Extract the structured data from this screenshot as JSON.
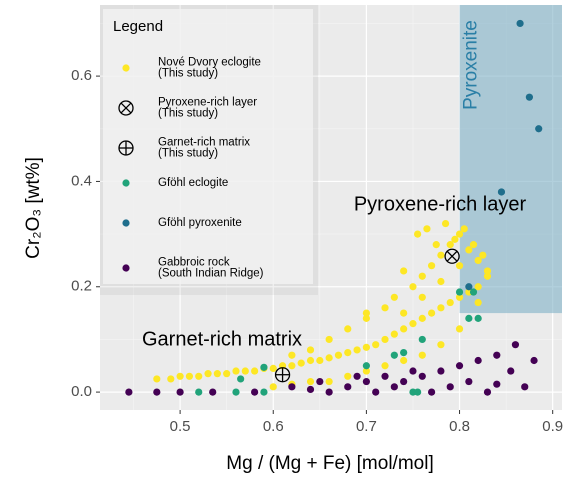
{
  "chart_data": {
    "type": "scatter",
    "xlabel": "Mg / (Mg + Fe) [mol/mol]",
    "ylabel": "Cr₂O₃ [wt%]",
    "xlim": [
      0.414,
      0.91
    ],
    "ylim": [
      -0.034,
      0.735
    ],
    "xticks": [
      0.5,
      0.6,
      0.7,
      0.8,
      0.9
    ],
    "yticks": [
      {
        "value": 0.0,
        "label": "0.0"
      },
      0.2,
      0.4,
      0.6
    ],
    "grid": true,
    "legend_title": "Legend",
    "legend_position": "upper-left",
    "regions": [
      {
        "label": "Pyroxenite",
        "color": "#7fb1c7",
        "xlim": [
          0.8,
          0.91
        ],
        "ylim": [
          0.15,
          0.735
        ]
      }
    ],
    "annotations": [
      {
        "text": "Pyroxene-rich layer"
      },
      {
        "text": "Garnet-rich matrix"
      }
    ],
    "series": [
      {
        "name": [
          "Nové Dvory eclogite",
          "(This study)"
        ],
        "color": "#fde725",
        "marker": "dot",
        "x": [
          0.475,
          0.49,
          0.5,
          0.51,
          0.52,
          0.53,
          0.54,
          0.55,
          0.56,
          0.57,
          0.58,
          0.59,
          0.6,
          0.61,
          0.62,
          0.63,
          0.64,
          0.65,
          0.66,
          0.67,
          0.68,
          0.69,
          0.7,
          0.71,
          0.72,
          0.73,
          0.74,
          0.75,
          0.76,
          0.77,
          0.78,
          0.79,
          0.8,
          0.81,
          0.82,
          0.83,
          0.6,
          0.62,
          0.64,
          0.66,
          0.68,
          0.7,
          0.72,
          0.74,
          0.76,
          0.78,
          0.8,
          0.7,
          0.72,
          0.73,
          0.75,
          0.76,
          0.77,
          0.78,
          0.79,
          0.8,
          0.81,
          0.82,
          0.83,
          0.755,
          0.765,
          0.775,
          0.785,
          0.795,
          0.805,
          0.815,
          0.825,
          0.74,
          0.76,
          0.78,
          0.8,
          0.82,
          0.66,
          0.68,
          0.7,
          0.74,
          0.64,
          0.62
        ],
        "y": [
          0.025,
          0.025,
          0.03,
          0.03,
          0.03,
          0.035,
          0.035,
          0.035,
          0.04,
          0.04,
          0.04,
          0.045,
          0.045,
          0.05,
          0.05,
          0.055,
          0.06,
          0.06,
          0.065,
          0.07,
          0.075,
          0.08,
          0.085,
          0.09,
          0.1,
          0.11,
          0.12,
          0.13,
          0.14,
          0.15,
          0.16,
          0.17,
          0.18,
          0.19,
          0.2,
          0.22,
          0.01,
          0.015,
          0.02,
          0.02,
          0.03,
          0.04,
          0.05,
          0.06,
          0.07,
          0.09,
          0.12,
          0.14,
          0.16,
          0.18,
          0.2,
          0.22,
          0.24,
          0.26,
          0.28,
          0.3,
          0.27,
          0.25,
          0.23,
          0.3,
          0.31,
          0.28,
          0.32,
          0.29,
          0.31,
          0.28,
          0.26,
          0.15,
          0.18,
          0.21,
          0.24,
          0.17,
          0.1,
          0.12,
          0.15,
          0.23,
          0.08,
          0.07
        ]
      },
      {
        "name": [
          "Pyroxene-rich layer",
          "(This study)"
        ],
        "color": "#000000",
        "marker": "cross-circle",
        "x": [
          0.792
        ],
        "y": [
          0.258
        ]
      },
      {
        "name": [
          "Garnet-rich matrix",
          "(This study)"
        ],
        "color": "#000000",
        "marker": "plus-circle",
        "x": [
          0.61
        ],
        "y": [
          0.033
        ]
      },
      {
        "name": [
          "Gföhl eclogite"
        ],
        "color": "#21a37a",
        "marker": "dot",
        "x": [
          0.52,
          0.56,
          0.565,
          0.59,
          0.59,
          0.75,
          0.755,
          0.73,
          0.74,
          0.76,
          0.81,
          0.82,
          0.8,
          0.815,
          0.7
        ],
        "y": [
          0.0,
          0.0,
          0.025,
          0.0,
          0.047,
          0.0,
          0.0,
          0.07,
          0.075,
          0.1,
          0.14,
          0.14,
          0.19,
          0.19,
          0.05
        ]
      },
      {
        "name": [
          "Gföhl pyroxenite"
        ],
        "color": "#1f6e8c",
        "marker": "dot",
        "x": [
          0.865,
          0.875,
          0.885,
          0.845,
          0.81
        ],
        "y": [
          0.7,
          0.56,
          0.5,
          0.38,
          0.2
        ]
      },
      {
        "name": [
          "Gabbroic rock",
          "(South Indian Ridge)"
        ],
        "color": "#440154",
        "marker": "dot",
        "x": [
          0.445,
          0.475,
          0.5,
          0.535,
          0.58,
          0.62,
          0.65,
          0.68,
          0.7,
          0.72,
          0.74,
          0.76,
          0.78,
          0.8,
          0.82,
          0.83,
          0.84,
          0.855,
          0.86,
          0.87,
          0.88,
          0.69,
          0.71,
          0.73,
          0.77,
          0.79,
          0.66,
          0.64,
          0.75,
          0.81,
          0.84
        ],
        "y": [
          0.0,
          0.0,
          0.0,
          0.0,
          0.0,
          0.01,
          0.02,
          0.01,
          0.02,
          0.03,
          0.02,
          0.03,
          0.04,
          0.05,
          0.06,
          0.0,
          0.07,
          0.04,
          0.09,
          0.01,
          0.06,
          0.03,
          0.0,
          0.01,
          0.0,
          0.01,
          0.0,
          0.005,
          0.04,
          0.02,
          0.015
        ]
      }
    ]
  }
}
